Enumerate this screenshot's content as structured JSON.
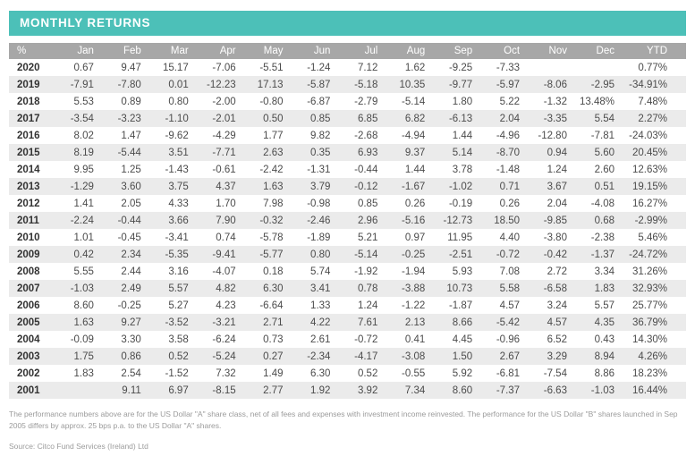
{
  "title": "MONTHLY RETURNS",
  "colors": {
    "accent_teal": "#4cc0b8",
    "header_gray": "#a7a7a7",
    "stripe_gray": "#ebebeb"
  },
  "table": {
    "columns": [
      "%",
      "Jan",
      "Feb",
      "Mar",
      "Apr",
      "May",
      "Jun",
      "Jul",
      "Aug",
      "Sep",
      "Oct",
      "Nov",
      "Dec",
      "YTD"
    ],
    "rows": [
      {
        "year": "2020",
        "values": [
          "0.67",
          "9.47",
          "15.17",
          "-7.06",
          "-5.51",
          "-1.24",
          "7.12",
          "1.62",
          "-9.25",
          "-7.33",
          "",
          "",
          "0.77%"
        ]
      },
      {
        "year": "2019",
        "values": [
          "-7.91",
          "-7.80",
          "0.01",
          "-12.23",
          "17.13",
          "-5.87",
          "-5.18",
          "10.35",
          "-9.77",
          "-5.97",
          "-8.06",
          "-2.95",
          "-34.91%"
        ]
      },
      {
        "year": "2018",
        "values": [
          "5.53",
          "0.89",
          "0.80",
          "-2.00",
          "-0.80",
          "-6.87",
          "-2.79",
          "-5.14",
          "1.80",
          "5.22",
          "-1.32",
          "13.48%",
          "7.48%"
        ]
      },
      {
        "year": "2017",
        "values": [
          "-3.54",
          "-3.23",
          "-1.10",
          "-2.01",
          "0.50",
          "0.85",
          "6.85",
          "6.82",
          "-6.13",
          "2.04",
          "-3.35",
          "5.54",
          "2.27%"
        ]
      },
      {
        "year": "2016",
        "values": [
          "8.02",
          "1.47",
          "-9.62",
          "-4.29",
          "1.77",
          "9.82",
          "-2.68",
          "-4.94",
          "1.44",
          "-4.96",
          "-12.80",
          "-7.81",
          "-24.03%"
        ]
      },
      {
        "year": "2015",
        "values": [
          "8.19",
          "-5.44",
          "3.51",
          "-7.71",
          "2.63",
          "0.35",
          "6.93",
          "9.37",
          "5.14",
          "-8.70",
          "0.94",
          "5.60",
          "20.45%"
        ]
      },
      {
        "year": "2014",
        "values": [
          "9.95",
          "1.25",
          "-1.43",
          "-0.61",
          "-2.42",
          "-1.31",
          "-0.44",
          "1.44",
          "3.78",
          "-1.48",
          "1.24",
          "2.60",
          "12.63%"
        ]
      },
      {
        "year": "2013",
        "values": [
          "-1.29",
          "3.60",
          "3.75",
          "4.37",
          "1.63",
          "3.79",
          "-0.12",
          "-1.67",
          "-1.02",
          "0.71",
          "3.67",
          "0.51",
          "19.15%"
        ]
      },
      {
        "year": "2012",
        "values": [
          "1.41",
          "2.05",
          "4.33",
          "1.70",
          "7.98",
          "-0.98",
          "0.85",
          "0.26",
          "-0.19",
          "0.26",
          "2.04",
          "-4.08",
          "16.27%"
        ]
      },
      {
        "year": "2011",
        "values": [
          "-2.24",
          "-0.44",
          "3.66",
          "7.90",
          "-0.32",
          "-2.46",
          "2.96",
          "-5.16",
          "-12.73",
          "18.50",
          "-9.85",
          "0.68",
          "-2.99%"
        ]
      },
      {
        "year": "2010",
        "values": [
          "1.01",
          "-0.45",
          "-3.41",
          "0.74",
          "-5.78",
          "-1.89",
          "5.21",
          "0.97",
          "11.95",
          "4.40",
          "-3.80",
          "-2.38",
          "5.46%"
        ]
      },
      {
        "year": "2009",
        "values": [
          "0.42",
          "2.34",
          "-5.35",
          "-9.41",
          "-5.77",
          "0.80",
          "-5.14",
          "-0.25",
          "-2.51",
          "-0.72",
          "-0.42",
          "-1.37",
          "-24.72%"
        ]
      },
      {
        "year": "2008",
        "values": [
          "5.55",
          "2.44",
          "3.16",
          "-4.07",
          "0.18",
          "5.74",
          "-1.92",
          "-1.94",
          "5.93",
          "7.08",
          "2.72",
          "3.34",
          "31.26%"
        ]
      },
      {
        "year": "2007",
        "values": [
          "-1.03",
          "2.49",
          "5.57",
          "4.82",
          "6.30",
          "3.41",
          "0.78",
          "-3.88",
          "10.73",
          "5.58",
          "-6.58",
          "1.83",
          "32.93%"
        ]
      },
      {
        "year": "2006",
        "values": [
          "8.60",
          "-0.25",
          "5.27",
          "4.23",
          "-6.64",
          "1.33",
          "1.24",
          "-1.22",
          "-1.87",
          "4.57",
          "3.24",
          "5.57",
          "25.77%"
        ]
      },
      {
        "year": "2005",
        "values": [
          "1.63",
          "9.27",
          "-3.52",
          "-3.21",
          "2.71",
          "4.22",
          "7.61",
          "2.13",
          "8.66",
          "-5.42",
          "4.57",
          "4.35",
          "36.79%"
        ]
      },
      {
        "year": "2004",
        "values": [
          "-0.09",
          "3.30",
          "3.58",
          "-6.24",
          "0.73",
          "2.61",
          "-0.72",
          "0.41",
          "4.45",
          "-0.96",
          "6.52",
          "0.43",
          "14.30%"
        ]
      },
      {
        "year": "2003",
        "values": [
          "1.75",
          "0.86",
          "0.52",
          "-5.24",
          "0.27",
          "-2.34",
          "-4.17",
          "-3.08",
          "1.50",
          "2.67",
          "3.29",
          "8.94",
          "4.26%"
        ]
      },
      {
        "year": "2002",
        "values": [
          "1.83",
          "2.54",
          "-1.52",
          "7.32",
          "1.49",
          "6.30",
          "0.52",
          "-0.55",
          "5.92",
          "-6.81",
          "-7.54",
          "8.86",
          "18.23%"
        ]
      },
      {
        "year": "2001",
        "values": [
          "",
          "9.11",
          "6.97",
          "-8.15",
          "2.77",
          "1.92",
          "3.92",
          "7.34",
          "8.60",
          "-7.37",
          "-6.63",
          "-1.03",
          "16.44%"
        ]
      }
    ]
  },
  "footnote": "The performance numbers above are for the US Dollar \"A\" share class, net of all fees and expenses with investment income reinvested. The performance for the US Dollar \"B\" shares launched in Sep 2005 differs by approx. 25 bps p.a. to the US Dollar \"A\" shares.",
  "source": "Source: Citco Fund Services (Ireland) Ltd"
}
